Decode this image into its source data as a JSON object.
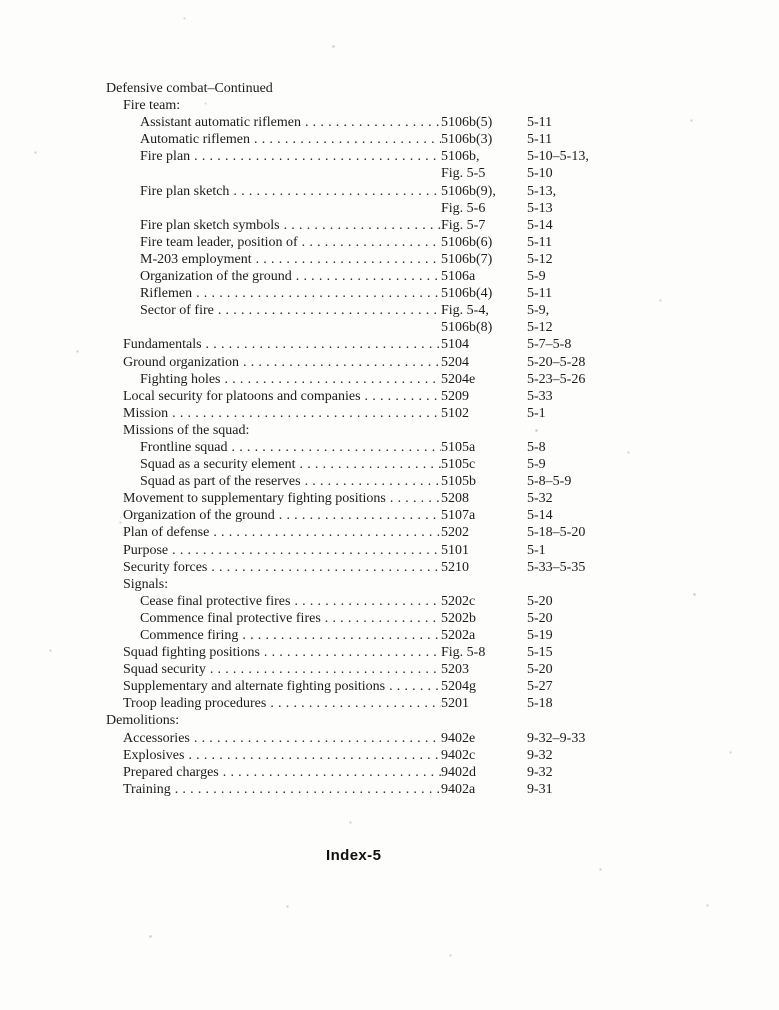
{
  "page": {
    "footer_label": "Index-5"
  },
  "toc": {
    "lines": [
      {
        "type": "heading",
        "indent": 0,
        "label": "Defensive combat–Continued"
      },
      {
        "type": "heading",
        "indent": 1,
        "label": "Fire team:"
      },
      {
        "type": "entry",
        "indent": 2,
        "label": "Assistant automatic riflemen",
        "ref": "5106b(5)",
        "page": "5-11"
      },
      {
        "type": "entry",
        "indent": 2,
        "label": "Automatic riflemen",
        "ref": "5106b(3)",
        "page": "5-11"
      },
      {
        "type": "entry",
        "indent": 2,
        "label": "Fire plan",
        "ref": "5106b,",
        "page": "5-10–5-13,"
      },
      {
        "type": "continuation",
        "ref": "Fig. 5-5",
        "page": "5-10"
      },
      {
        "type": "entry",
        "indent": 2,
        "label": "Fire plan sketch",
        "ref": "5106b(9),",
        "page": "5-13,"
      },
      {
        "type": "continuation",
        "ref": "Fig. 5-6",
        "page": "5-13"
      },
      {
        "type": "entry",
        "indent": 2,
        "label": "Fire plan sketch symbols",
        "ref": "Fig. 5-7",
        "page": "5-14"
      },
      {
        "type": "entry",
        "indent": 2,
        "label": "Fire team leader, position of",
        "ref": "5106b(6)",
        "page": "5-11"
      },
      {
        "type": "entry",
        "indent": 2,
        "label": "M-203 employment",
        "ref": "5106b(7)",
        "page": "5-12"
      },
      {
        "type": "entry",
        "indent": 2,
        "label": "Organization of the ground",
        "ref": "5106a",
        "page": "5-9"
      },
      {
        "type": "entry",
        "indent": 2,
        "label": "Riflemen",
        "ref": "5106b(4)",
        "page": "5-11"
      },
      {
        "type": "entry",
        "indent": 2,
        "label": "Sector of fire",
        "ref": "Fig. 5-4,",
        "page": "5-9,"
      },
      {
        "type": "continuation",
        "ref": "5106b(8)",
        "page": "5-12"
      },
      {
        "type": "entry",
        "indent": 1,
        "label": "Fundamentals",
        "ref": "5104",
        "page": "5-7–5-8"
      },
      {
        "type": "entry",
        "indent": 1,
        "label": "Ground organization",
        "ref": "5204",
        "page": "5-20–5-28"
      },
      {
        "type": "entry",
        "indent": 2,
        "label": "Fighting holes",
        "ref": "5204e",
        "page": "5-23–5-26"
      },
      {
        "type": "entry",
        "indent": 1,
        "label": "Local security for platoons and companies",
        "ref": "5209",
        "page": "5-33"
      },
      {
        "type": "entry",
        "indent": 1,
        "label": "Mission",
        "ref": "5102",
        "page": "5-1"
      },
      {
        "type": "heading",
        "indent": 1,
        "label": "Missions of the squad:"
      },
      {
        "type": "entry",
        "indent": 2,
        "label": "Frontline squad",
        "ref": "5105a",
        "page": "5-8"
      },
      {
        "type": "entry",
        "indent": 2,
        "label": "Squad as a security element",
        "ref": "5105c",
        "page": "5-9"
      },
      {
        "type": "entry",
        "indent": 2,
        "label": "Squad as part of the reserves",
        "ref": "5105b",
        "page": "5-8–5-9"
      },
      {
        "type": "entry",
        "indent": 1,
        "label": "Movement to supplementary fighting positions",
        "ref": "5208",
        "page": "5-32"
      },
      {
        "type": "entry",
        "indent": 1,
        "label": "Organization of the ground",
        "ref": "5107a",
        "page": "5-14"
      },
      {
        "type": "entry",
        "indent": 1,
        "label": "Plan of defense",
        "ref": "5202",
        "page": "5-18–5-20"
      },
      {
        "type": "entry",
        "indent": 1,
        "label": "Purpose",
        "ref": "5101",
        "page": "5-1"
      },
      {
        "type": "entry",
        "indent": 1,
        "label": "Security forces",
        "ref": "5210",
        "page": "5-33–5-35"
      },
      {
        "type": "heading",
        "indent": 1,
        "label": "Signals:"
      },
      {
        "type": "entry",
        "indent": 2,
        "label": "Cease final protective fires",
        "ref": "5202c",
        "page": "5-20"
      },
      {
        "type": "entry",
        "indent": 2,
        "label": "Commence final protective fires",
        "ref": "5202b",
        "page": "5-20"
      },
      {
        "type": "entry",
        "indent": 2,
        "label": "Commence firing",
        "ref": "5202a",
        "page": "5-19"
      },
      {
        "type": "entry",
        "indent": 1,
        "label": "Squad fighting positions",
        "ref": "Fig. 5-8",
        "page": "5-15"
      },
      {
        "type": "entry",
        "indent": 1,
        "label": "Squad security",
        "ref": "5203",
        "page": "5-20"
      },
      {
        "type": "entry",
        "indent": 1,
        "label": "Supplementary and alternate fighting positions",
        "ref": "5204g",
        "page": "5-27"
      },
      {
        "type": "entry",
        "indent": 1,
        "label": "Troop leading procedures",
        "ref": "5201",
        "page": "5-18"
      },
      {
        "type": "heading",
        "indent": 0,
        "label": "Demolitions:"
      },
      {
        "type": "entry",
        "indent": 1,
        "label": "Accessories",
        "ref": "9402e",
        "page": "9-32–9-33"
      },
      {
        "type": "entry",
        "indent": 1,
        "label": "Explosives",
        "ref": "9402c",
        "page": "9-32"
      },
      {
        "type": "entry",
        "indent": 1,
        "label": "Prepared charges",
        "ref": "9402d",
        "page": "9-32"
      },
      {
        "type": "entry",
        "indent": 1,
        "label": "Training",
        "ref": "9402a",
        "page": "9-31"
      }
    ]
  }
}
